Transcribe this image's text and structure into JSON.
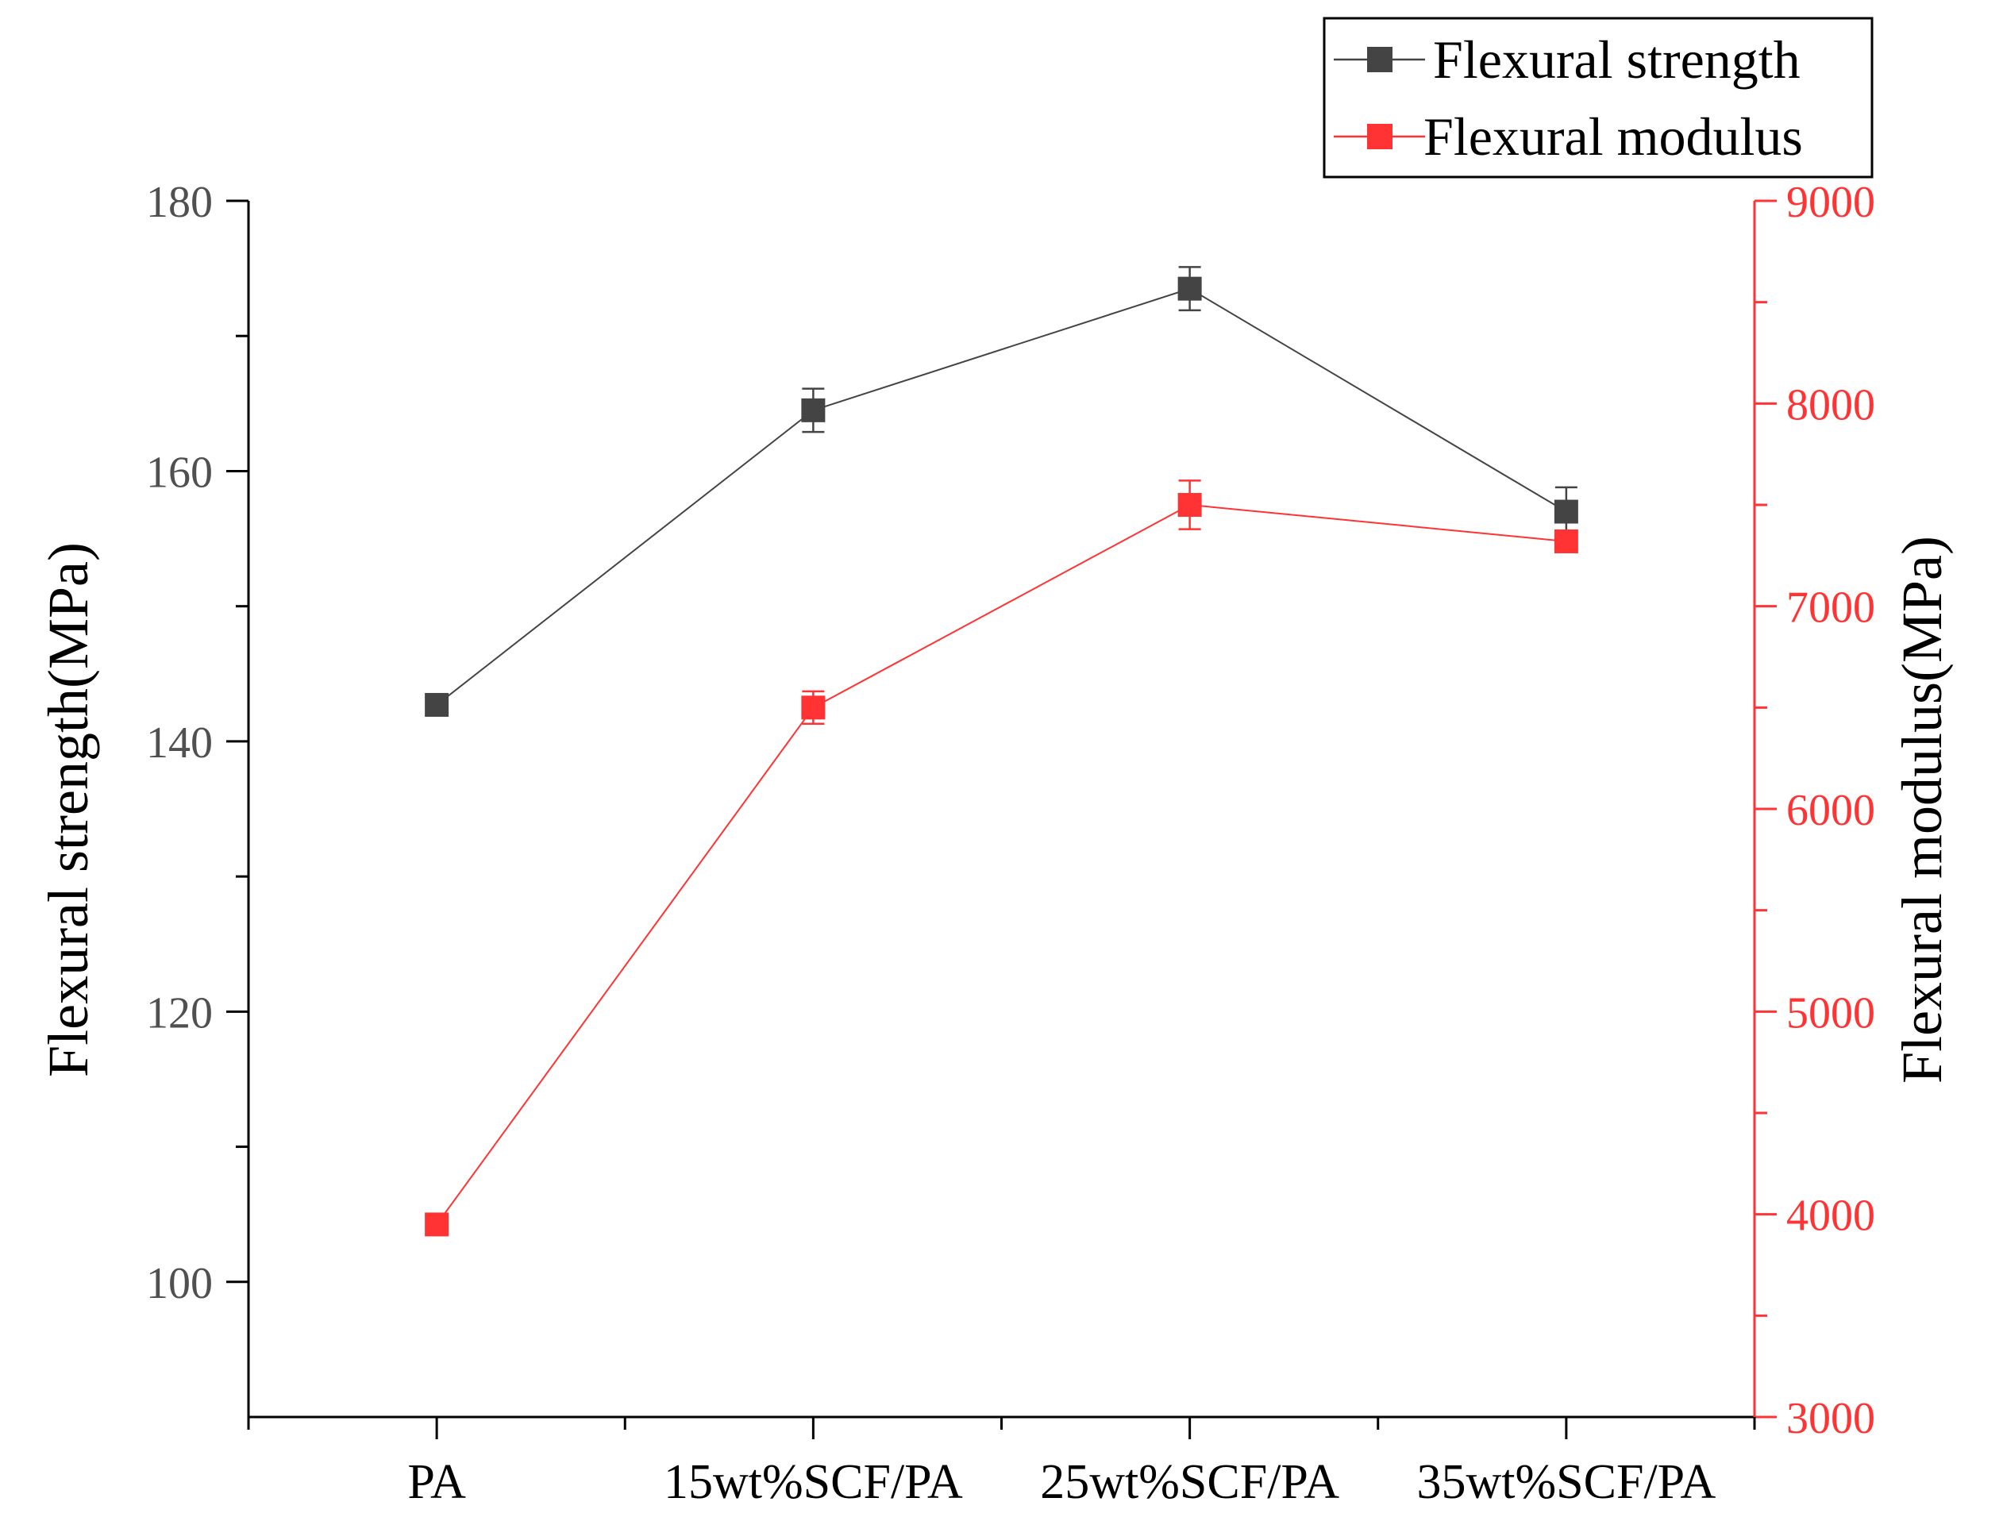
{
  "chart_data": {
    "type": "line",
    "dual_axis": true,
    "categories": [
      "PA",
      "15wt%SCF/PA",
      "25wt%SCF/PA",
      "35wt%SCF/PA"
    ],
    "xlim": [
      -0.5,
      3.5
    ],
    "left_axis": {
      "label": "Flexural strength(MPa)",
      "ylim": [
        90,
        180
      ],
      "ticks": [
        100,
        120,
        140,
        160,
        180
      ],
      "tick_labels": [
        "100",
        "120",
        "140",
        "160",
        "180"
      ],
      "minor_ticks": [
        110,
        130,
        150,
        170
      ],
      "color": "#505050"
    },
    "right_axis": {
      "label": "Flexural modulus(MPa)",
      "ylim": [
        3000,
        9000
      ],
      "ticks": [
        3000,
        4000,
        5000,
        6000,
        7000,
        8000,
        9000
      ],
      "tick_labels": [
        "3000",
        "4000",
        "5000",
        "6000",
        "7000",
        "8000",
        "9000"
      ],
      "minor_ticks": [
        3500,
        4500,
        5500,
        6500,
        7500,
        8500
      ],
      "color": "#ff3333"
    },
    "series": [
      {
        "name": "Flexural strength",
        "axis": "left",
        "color": "#444444",
        "marker": "square",
        "values": [
          142.7,
          164.5,
          173.5,
          157.0
        ],
        "errors": [
          0.3,
          1.6,
          1.6,
          1.8
        ]
      },
      {
        "name": "Flexural modulus",
        "axis": "right",
        "color": "#ff3333",
        "marker": "square",
        "values": [
          3950,
          6500,
          7500,
          7320
        ],
        "errors": [
          0,
          80,
          120,
          30
        ]
      }
    ],
    "legend": {
      "position": "top-right",
      "entries": [
        "Flexural strength",
        "Flexural modulus"
      ]
    },
    "grid": false
  }
}
